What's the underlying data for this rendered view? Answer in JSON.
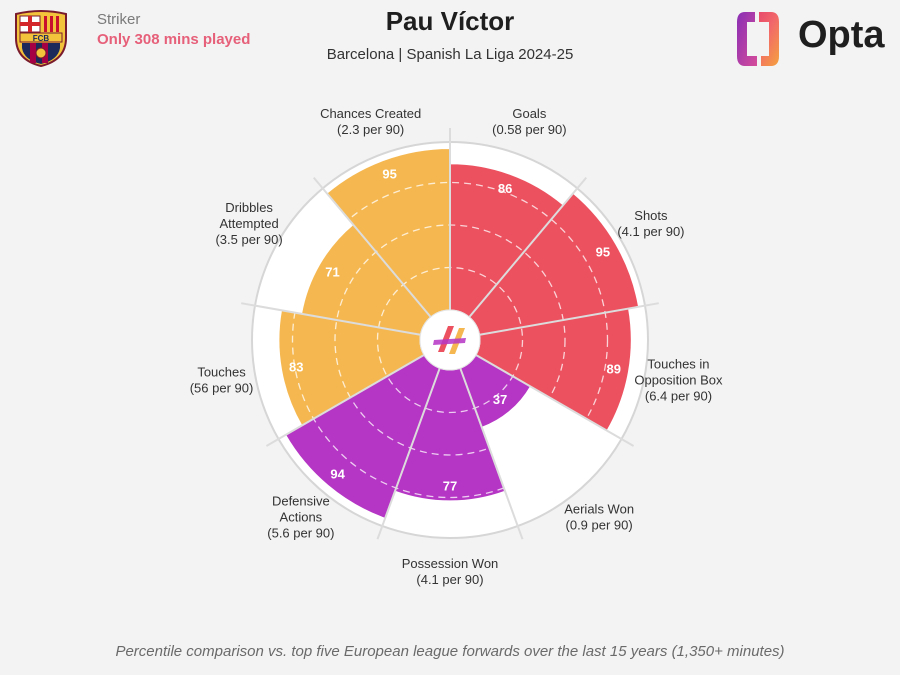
{
  "header": {
    "role": "Striker",
    "minutes_note": "Only 308 mins played",
    "title": "Pau Víctor",
    "subtitle": "Barcelona | Spanish La Liga 2024-25",
    "brand": "Opta",
    "crest_text": "FCB"
  },
  "footnote": "Percentile comparison vs. top five European league forwards over the last 15 years (1,350+ minutes)",
  "colors": {
    "attacking": "#ec5160",
    "possession": "#f5b851",
    "defending": "#b535c4",
    "background": "#f3f3f3",
    "note": "#e6607a"
  },
  "chart_data": {
    "type": "polar-bar",
    "scale": [
      0,
      100
    ],
    "grid": true,
    "categories": [
      {
        "label": "Goals",
        "per90": "(0.58 per 90)",
        "value": 86,
        "group": "attacking"
      },
      {
        "label": "Shots",
        "per90": "(4.1 per 90)",
        "value": 95,
        "group": "attacking"
      },
      {
        "label": "Touches in Opposition Box",
        "label_lines": [
          "Touches in",
          "Opposition Box"
        ],
        "per90": "(6.4 per 90)",
        "value": 89,
        "group": "attacking"
      },
      {
        "label": "Aerials Won",
        "per90": "(0.9 per 90)",
        "value": 37,
        "group": "defending"
      },
      {
        "label": "Possession Won",
        "per90": "(4.1 per 90)",
        "value": 77,
        "group": "defending"
      },
      {
        "label": "Defensive Actions",
        "label_lines": [
          "Defensive",
          "Actions"
        ],
        "per90": "(5.6 per 90)",
        "value": 94,
        "group": "defending"
      },
      {
        "label": "Touches",
        "per90": "(56 per 90)",
        "value": 83,
        "group": "possession"
      },
      {
        "label": "Dribbles Attempted",
        "label_lines": [
          "Dribbles",
          "Attempted"
        ],
        "per90": "(3.5 per 90)",
        "value": 71,
        "group": "possession"
      },
      {
        "label": "Chances Created",
        "per90": "(2.3 per 90)",
        "value": 95,
        "group": "possession"
      }
    ]
  }
}
